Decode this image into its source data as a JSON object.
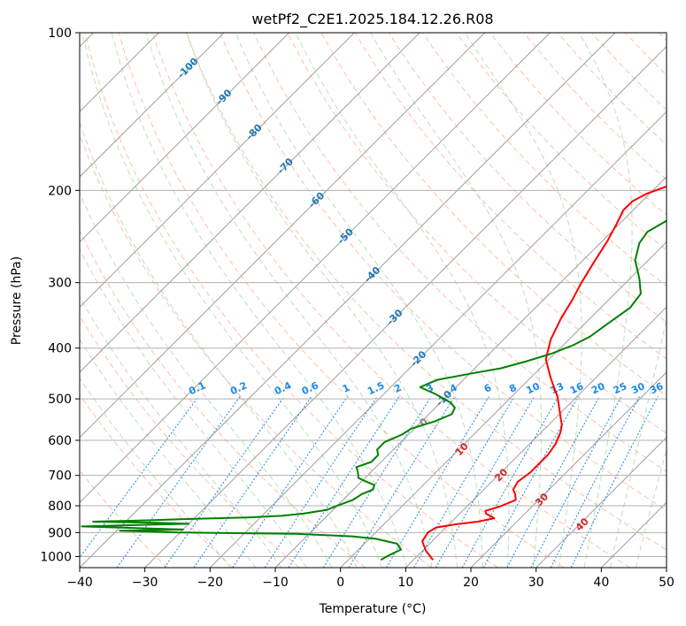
{
  "chart_data": {
    "type": "line",
    "subtype": "skew-t log-p",
    "title": "wetPf2_C2E1.2025.184.12.26.R08",
    "xlabel": "Temperature (°C)",
    "ylabel": "Pressure (hPa)",
    "xlim": [
      -40,
      50
    ],
    "ylim": [
      1050,
      100
    ],
    "y_scale": "log",
    "x_ticks": [
      -40,
      -30,
      -20,
      -10,
      0,
      10,
      20,
      30,
      40,
      50
    ],
    "y_ticks": [
      100,
      200,
      300,
      400,
      500,
      600,
      700,
      800,
      900,
      1000
    ],
    "grid": true,
    "colors": {
      "temperature": "#ff0000",
      "dewpoint": "#008000",
      "isotherm": "#9e9e9e",
      "pressure_grid": "#b0b0b0",
      "dry_adiabat": "#ff8a65",
      "moist_adiabat": "#66bb6a",
      "mixing_ratio": "#1e88e5",
      "isotherm_label": "#1f77b4",
      "frame": "#000000"
    },
    "series": [
      {
        "key": "temperature",
        "points": [
          [
            13,
            1015
          ],
          [
            10.5,
            975
          ],
          [
            8.5,
            935
          ],
          [
            8,
            900
          ],
          [
            8.5,
            880
          ],
          [
            11,
            868
          ],
          [
            14,
            858
          ],
          [
            16,
            845
          ],
          [
            14,
            828
          ],
          [
            13.5,
            818
          ],
          [
            15,
            803
          ],
          [
            16.5,
            780
          ],
          [
            15.5,
            760
          ],
          [
            14.5,
            745
          ],
          [
            14,
            720
          ],
          [
            14.5,
            690
          ],
          [
            14.5,
            660
          ],
          [
            14.5,
            640
          ],
          [
            14,
            610
          ],
          [
            13,
            580
          ],
          [
            12,
            560
          ],
          [
            10.5,
            540
          ],
          [
            9,
            520
          ],
          [
            7,
            495
          ],
          [
            3,
            455
          ],
          [
            -0.5,
            420
          ],
          [
            -2.8,
            385
          ],
          [
            -4.5,
            350
          ],
          [
            -5.5,
            325
          ],
          [
            -6.8,
            300
          ],
          [
            -8,
            275
          ],
          [
            -9.2,
            250
          ],
          [
            -10.4,
            232
          ],
          [
            -11.5,
            218
          ],
          [
            -11.5,
            210
          ],
          [
            -10.5,
            203
          ],
          [
            -8,
            195
          ],
          [
            -5,
            186
          ],
          [
            -3,
            178
          ],
          [
            -1.5,
            170
          ],
          [
            -1,
            160
          ],
          [
            -1.5,
            150
          ],
          [
            -2,
            140
          ],
          [
            -1.5,
            130
          ],
          [
            0,
            122
          ],
          [
            0.8,
            115
          ],
          [
            2.5,
            107
          ],
          [
            4,
            100
          ]
        ]
      },
      {
        "key": "dewpoint",
        "points": [
          [
            5,
            1015
          ],
          [
            5.5,
            995
          ],
          [
            6.5,
            970
          ],
          [
            5,
            945
          ],
          [
            1,
            925
          ],
          [
            -3,
            915
          ],
          [
            -12,
            905
          ],
          [
            -30,
            900
          ],
          [
            -39.5,
            893
          ],
          [
            -30,
            888
          ],
          [
            -38,
            882
          ],
          [
            -46,
            876
          ],
          [
            -37,
            870
          ],
          [
            -30,
            866
          ],
          [
            -35,
            862
          ],
          [
            -45,
            858
          ],
          [
            -37,
            853
          ],
          [
            -31,
            848
          ],
          [
            -22,
            842
          ],
          [
            -17,
            836
          ],
          [
            -14,
            828
          ],
          [
            -11,
            815
          ],
          [
            -10,
            800
          ],
          [
            -8.5,
            780
          ],
          [
            -8,
            760
          ],
          [
            -7,
            745
          ],
          [
            -7.5,
            730
          ],
          [
            -9.5,
            718
          ],
          [
            -11,
            708
          ],
          [
            -12,
            690
          ],
          [
            -13,
            675
          ],
          [
            -11.5,
            660
          ],
          [
            -11.5,
            640
          ],
          [
            -12.5,
            625
          ],
          [
            -12.5,
            605
          ],
          [
            -11,
            585
          ],
          [
            -10.5,
            570
          ],
          [
            -8,
            552
          ],
          [
            -6.5,
            535
          ],
          [
            -7,
            520
          ],
          [
            -8.5,
            508
          ],
          [
            -12,
            490
          ],
          [
            -15.5,
            475
          ],
          [
            -14,
            460
          ],
          [
            -10,
            448
          ],
          [
            -6,
            437
          ],
          [
            -3,
            423
          ],
          [
            -0.5,
            410
          ],
          [
            1.5,
            395
          ],
          [
            2.8,
            380
          ],
          [
            3.5,
            360
          ],
          [
            4.5,
            335
          ],
          [
            4,
            315
          ],
          [
            1.5,
            295
          ],
          [
            -2,
            272
          ],
          [
            -4,
            252
          ],
          [
            -4.5,
            240
          ],
          [
            -3.2,
            228
          ],
          [
            -3.8,
            212
          ],
          [
            -5.5,
            200
          ],
          [
            -8.5,
            190
          ],
          [
            -10,
            178
          ],
          [
            -10,
            165
          ],
          [
            -8.5,
            152
          ],
          [
            -6.5,
            142
          ],
          [
            -5.5,
            132
          ],
          [
            -4.5,
            125
          ],
          [
            -3.2,
            120
          ],
          [
            -1.5,
            116
          ],
          [
            0,
            112
          ],
          [
            0.5,
            106
          ],
          [
            1,
            100
          ]
        ]
      }
    ],
    "isotherm_labels": [
      "-100",
      "-90",
      "-80",
      "-70",
      "-60",
      "-50",
      "-40",
      "-30",
      "-20",
      "-10"
    ],
    "mixing_ratio_labels": [
      "0.1",
      "0.2",
      "0.4",
      "0.6",
      "1",
      "1.5",
      "2",
      "3",
      "4",
      "6",
      "8",
      "10",
      "13",
      "16",
      "20",
      "25",
      "30",
      "36"
    ],
    "extra_labels": [
      {
        "text": "0",
        "color": "#888888"
      },
      {
        "text": "10",
        "color": "#d62728"
      },
      {
        "text": "20",
        "color": "#d62728"
      },
      {
        "text": "30",
        "color": "#d62728"
      },
      {
        "text": "40",
        "color": "#d62728"
      }
    ]
  }
}
